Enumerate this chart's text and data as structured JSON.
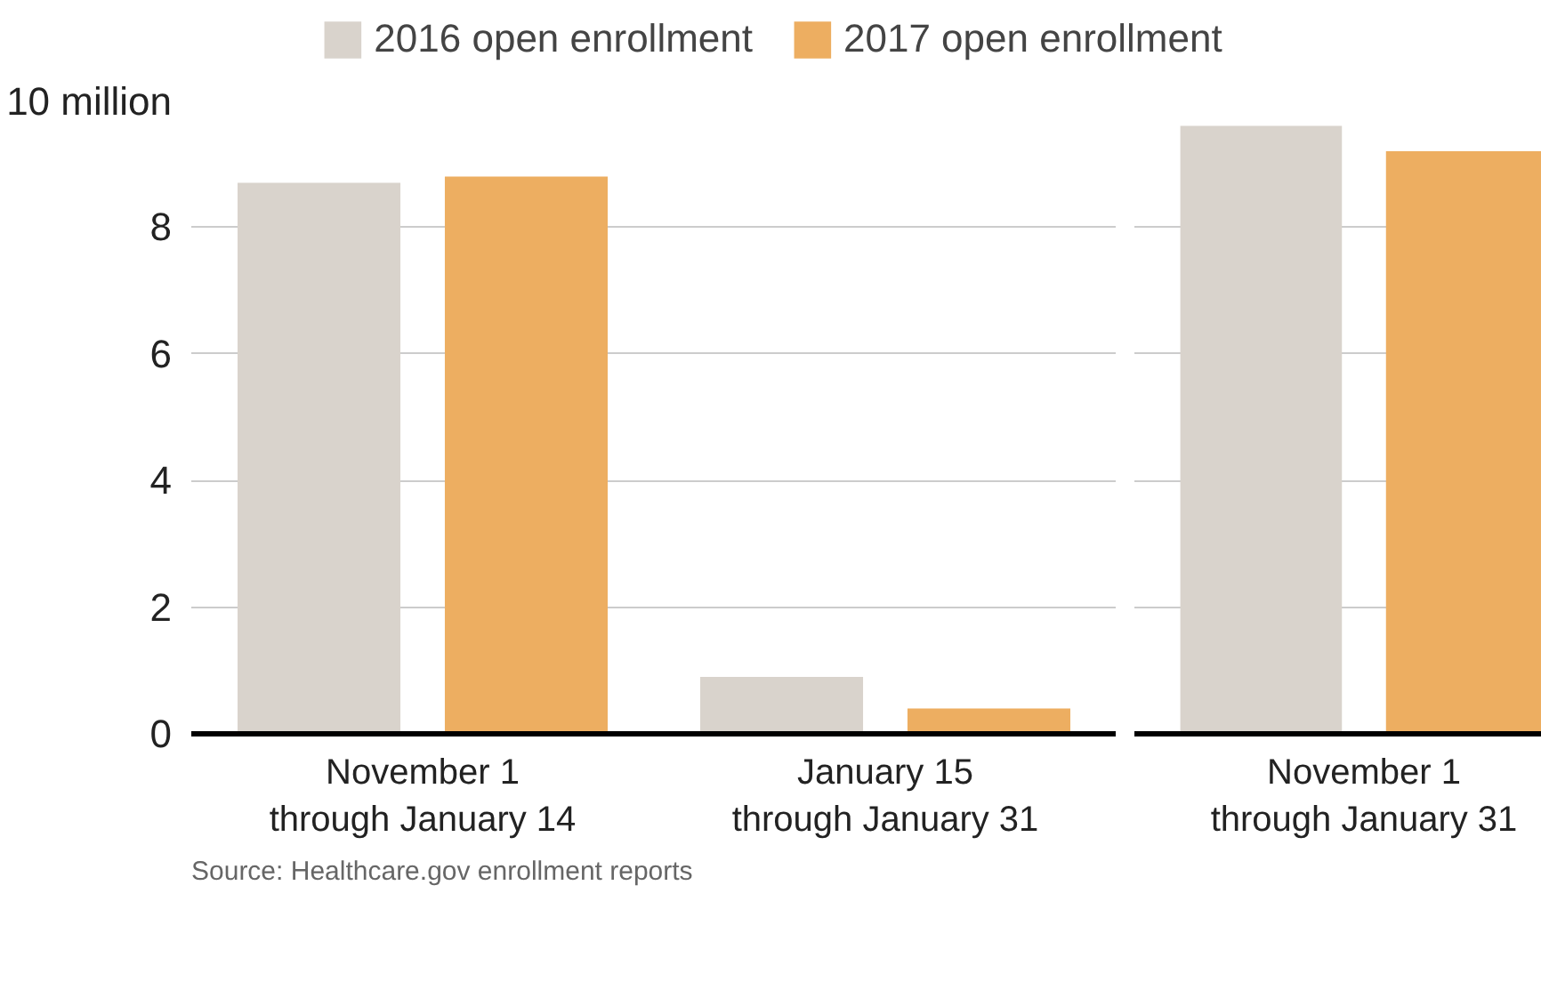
{
  "chart_data": [
    {
      "type": "bar",
      "categories": [
        "November 1\nthrough January 14",
        "January 15\nthrough January 31"
      ],
      "series": [
        {
          "name": "2016 open enrollment",
          "color": "#d9d3cc",
          "values": [
            8.7,
            0.9
          ]
        },
        {
          "name": "2017 open enrollment",
          "color": "#edae61",
          "values": [
            8.8,
            0.4
          ]
        }
      ],
      "ylim": [
        0,
        10
      ],
      "yticks": [
        0,
        2,
        4,
        6,
        8,
        {
          "value": 10,
          "label": "10 million"
        }
      ],
      "grid": "y",
      "legend": "top",
      "annotations": [
        "Source: Healthcare.gov enrollment reports"
      ]
    },
    {
      "type": "bar",
      "categories": [
        "November 1\nthrough January 31"
      ],
      "series": [
        {
          "color": "#d9d3cc",
          "values": [
            9.6
          ]
        },
        {
          "color": "#edae61",
          "values": [
            9.2
          ]
        }
      ],
      "ylim": [
        0,
        10
      ],
      "yticks": [
        0,
        2,
        4,
        6,
        8,
        10
      ],
      "grid": "y",
      "tick_labels": "x"
    }
  ]
}
